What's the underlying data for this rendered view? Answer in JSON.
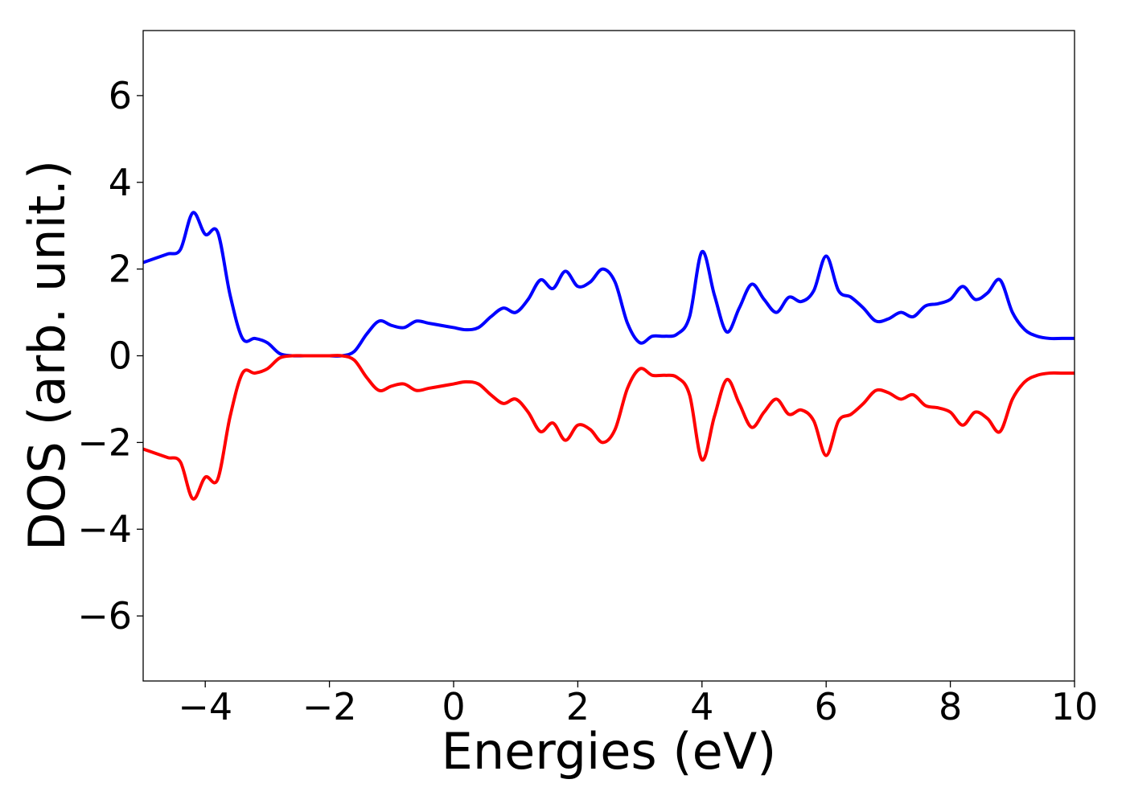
{
  "chart_data": {
    "type": "line",
    "xlabel": "Energies (eV)",
    "ylabel": "DOS (arb. unit.)",
    "xlim": [
      -5,
      10
    ],
    "ylim": [
      -7.5,
      7.5
    ],
    "xticks": [
      {
        "value": -4,
        "label": "−4"
      },
      {
        "value": -2,
        "label": "−2"
      },
      {
        "value": 0,
        "label": "0"
      },
      {
        "value": 2,
        "label": "2"
      },
      {
        "value": 4,
        "label": "4"
      },
      {
        "value": 6,
        "label": "6"
      },
      {
        "value": 8,
        "label": "8"
      },
      {
        "value": 10,
        "label": "10"
      }
    ],
    "yticks": [
      {
        "value": 6,
        "label": "6"
      },
      {
        "value": 4,
        "label": "4"
      },
      {
        "value": 2,
        "label": "2"
      },
      {
        "value": 0,
        "label": "0"
      },
      {
        "value": -2,
        "label": "−2"
      },
      {
        "value": -4,
        "label": "−4"
      },
      {
        "value": -6,
        "label": "−6"
      }
    ],
    "grid": false,
    "legend": null,
    "x": [
      -5.0,
      -4.8,
      -4.6,
      -4.4,
      -4.2,
      -4.0,
      -3.8,
      -3.6,
      -3.4,
      -3.2,
      -3.0,
      -2.8,
      -2.6,
      -2.4,
      -2.2,
      -2.0,
      -1.8,
      -1.6,
      -1.4,
      -1.2,
      -1.0,
      -0.8,
      -0.6,
      -0.4,
      -0.2,
      0.0,
      0.2,
      0.4,
      0.6,
      0.8,
      1.0,
      1.2,
      1.4,
      1.6,
      1.8,
      2.0,
      2.2,
      2.4,
      2.6,
      2.8,
      3.0,
      3.2,
      3.4,
      3.6,
      3.8,
      4.0,
      4.2,
      4.4,
      4.6,
      4.8,
      5.0,
      5.2,
      5.4,
      5.6,
      5.8,
      6.0,
      6.2,
      6.4,
      6.6,
      6.8,
      7.0,
      7.2,
      7.4,
      7.6,
      7.8,
      8.0,
      8.2,
      8.4,
      8.6,
      8.8,
      9.0,
      9.2,
      9.4,
      9.6,
      9.8,
      10.0
    ],
    "series": [
      {
        "color": "#0000ff",
        "values": [
          2.15,
          2.25,
          2.35,
          2.45,
          3.3,
          2.8,
          2.85,
          1.4,
          0.4,
          0.4,
          0.3,
          0.05,
          0.0,
          0.0,
          0.0,
          0.0,
          0.0,
          0.1,
          0.5,
          0.8,
          0.7,
          0.65,
          0.8,
          0.75,
          0.7,
          0.65,
          0.6,
          0.65,
          0.9,
          1.1,
          1.0,
          1.3,
          1.75,
          1.55,
          1.95,
          1.6,
          1.7,
          2.0,
          1.7,
          0.75,
          0.3,
          0.45,
          0.45,
          0.5,
          0.9,
          2.4,
          1.4,
          0.55,
          1.1,
          1.65,
          1.3,
          1.0,
          1.35,
          1.25,
          1.5,
          2.3,
          1.5,
          1.35,
          1.1,
          0.8,
          0.85,
          1.0,
          0.9,
          1.15,
          1.2,
          1.3,
          1.6,
          1.3,
          1.45,
          1.75,
          1.0,
          0.6,
          0.45,
          0.4,
          0.4,
          0.4
        ]
      },
      {
        "color": "#ff0000",
        "values": [
          -2.15,
          -2.25,
          -2.35,
          -2.45,
          -3.3,
          -2.8,
          -2.85,
          -1.4,
          -0.4,
          -0.4,
          -0.3,
          -0.05,
          0.0,
          0.0,
          0.0,
          0.0,
          0.0,
          -0.1,
          -0.5,
          -0.8,
          -0.7,
          -0.65,
          -0.8,
          -0.75,
          -0.7,
          -0.65,
          -0.6,
          -0.65,
          -0.9,
          -1.1,
          -1.0,
          -1.3,
          -1.75,
          -1.55,
          -1.95,
          -1.6,
          -1.7,
          -2.0,
          -1.7,
          -0.75,
          -0.3,
          -0.45,
          -0.45,
          -0.5,
          -0.9,
          -2.4,
          -1.4,
          -0.55,
          -1.1,
          -1.65,
          -1.3,
          -1.0,
          -1.35,
          -1.25,
          -1.5,
          -2.3,
          -1.5,
          -1.35,
          -1.1,
          -0.8,
          -0.85,
          -1.0,
          -0.9,
          -1.15,
          -1.2,
          -1.3,
          -1.6,
          -1.3,
          -1.45,
          -1.75,
          -1.0,
          -0.6,
          -0.45,
          -0.4,
          -0.4,
          -0.4
        ]
      }
    ]
  }
}
